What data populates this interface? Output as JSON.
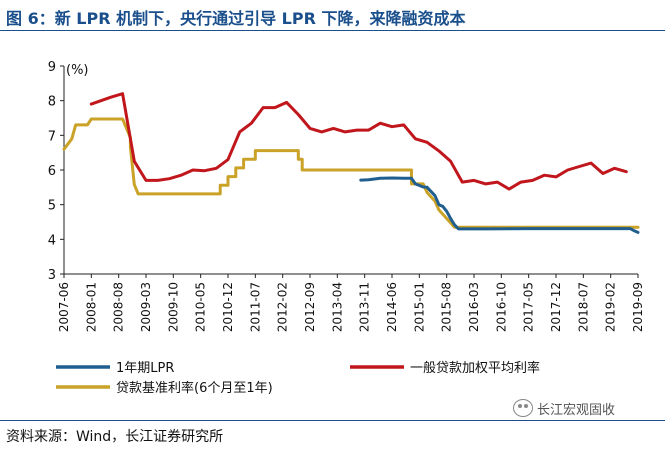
{
  "header": {
    "title": "图 6：新 LPR 机制下，央行通过引导 LPR 下降，来降融资成本"
  },
  "footer": {
    "source": "资料来源：Wind，长江证券研究所",
    "watermark": "长江宏观固收"
  },
  "colors": {
    "lpr": "#1f5e8f",
    "weighted": "#c0161c",
    "benchmark": "#c9a227",
    "accent": "#1a4f8c"
  },
  "icons": {
    "watermark": "wechat-icon"
  },
  "chart_data": {
    "type": "line",
    "unit_label": "(%)",
    "ylim": [
      3,
      9
    ],
    "yticks": [
      "3",
      "4",
      "5",
      "6",
      "7",
      "8",
      "9"
    ],
    "xlim": [
      "2007-06",
      "2019-09"
    ],
    "xticks": [
      "2007-06",
      "2008-01",
      "2008-08",
      "2009-03",
      "2009-10",
      "2010-05",
      "2010-12",
      "2011-07",
      "2012-02",
      "2012-09",
      "2013-04",
      "2013-11",
      "2014-06",
      "2015-01",
      "2015-08",
      "2016-03",
      "2016-10",
      "2017-05",
      "2017-12",
      "2018-07",
      "2019-02",
      "2019-09"
    ],
    "grid": false,
    "legend_position": "bottom",
    "series": [
      {
        "name": "1年期LPR",
        "color": "#1f5e8f",
        "points": [
          [
            "2013-10",
            5.71
          ],
          [
            "2013-12",
            5.72
          ],
          [
            "2014-03",
            5.76
          ],
          [
            "2014-06",
            5.77
          ],
          [
            "2014-09",
            5.76
          ],
          [
            "2014-11",
            5.76
          ],
          [
            "2014-12",
            5.6
          ],
          [
            "2015-02",
            5.51
          ],
          [
            "2015-03",
            5.5
          ],
          [
            "2015-05",
            5.26
          ],
          [
            "2015-06",
            5.0
          ],
          [
            "2015-07",
            4.95
          ],
          [
            "2015-08",
            4.81
          ],
          [
            "2015-09",
            4.6
          ],
          [
            "2015-10",
            4.42
          ],
          [
            "2015-11",
            4.3
          ],
          [
            "2016-06",
            4.3
          ],
          [
            "2017-06",
            4.31
          ],
          [
            "2018-06",
            4.31
          ],
          [
            "2019-02",
            4.31
          ],
          [
            "2019-07",
            4.31
          ],
          [
            "2019-08",
            4.25
          ],
          [
            "2019-09",
            4.2
          ]
        ]
      },
      {
        "name": "一般贷款加权平均利率",
        "color": "#c0161c",
        "points": [
          [
            "2008-01",
            7.9
          ],
          [
            "2008-06",
            8.1
          ],
          [
            "2008-09",
            8.2
          ],
          [
            "2008-12",
            6.25
          ],
          [
            "2009-03",
            5.7
          ],
          [
            "2009-06",
            5.7
          ],
          [
            "2009-09",
            5.75
          ],
          [
            "2009-12",
            5.85
          ],
          [
            "2010-03",
            6.0
          ],
          [
            "2010-06",
            5.98
          ],
          [
            "2010-09",
            6.05
          ],
          [
            "2010-12",
            6.3
          ],
          [
            "2011-03",
            7.1
          ],
          [
            "2011-06",
            7.35
          ],
          [
            "2011-09",
            7.8
          ],
          [
            "2011-12",
            7.8
          ],
          [
            "2012-03",
            7.95
          ],
          [
            "2012-06",
            7.6
          ],
          [
            "2012-09",
            7.2
          ],
          [
            "2012-12",
            7.1
          ],
          [
            "2013-03",
            7.2
          ],
          [
            "2013-06",
            7.1
          ],
          [
            "2013-09",
            7.15
          ],
          [
            "2013-12",
            7.15
          ],
          [
            "2014-03",
            7.35
          ],
          [
            "2014-06",
            7.25
          ],
          [
            "2014-09",
            7.3
          ],
          [
            "2014-12",
            6.9
          ],
          [
            "2015-03",
            6.8
          ],
          [
            "2015-06",
            6.55
          ],
          [
            "2015-09",
            6.25
          ],
          [
            "2015-12",
            5.65
          ],
          [
            "2016-03",
            5.7
          ],
          [
            "2016-06",
            5.6
          ],
          [
            "2016-09",
            5.65
          ],
          [
            "2016-12",
            5.45
          ],
          [
            "2017-03",
            5.65
          ],
          [
            "2017-06",
            5.7
          ],
          [
            "2017-09",
            5.85
          ],
          [
            "2017-12",
            5.8
          ],
          [
            "2018-03",
            6.0
          ],
          [
            "2018-06",
            6.1
          ],
          [
            "2018-09",
            6.2
          ],
          [
            "2018-12",
            5.9
          ],
          [
            "2019-03",
            6.05
          ],
          [
            "2019-06",
            5.95
          ]
        ]
      },
      {
        "name": "贷款基准利率(6个月至1年)",
        "color": "#c9a227",
        "points": [
          [
            "2007-06",
            6.6
          ],
          [
            "2007-08",
            6.9
          ],
          [
            "2007-09",
            7.3
          ],
          [
            "2007-12",
            7.3
          ],
          [
            "2008-01",
            7.47
          ],
          [
            "2008-09",
            7.47
          ],
          [
            "2008-10",
            7.2
          ],
          [
            "2008-11",
            6.93
          ],
          [
            "2008-11",
            6.66
          ],
          [
            "2008-12",
            5.58
          ],
          [
            "2009-01",
            5.31
          ],
          [
            "2010-10",
            5.31
          ],
          [
            "2010-10",
            5.56
          ],
          [
            "2010-12",
            5.56
          ],
          [
            "2010-12",
            5.81
          ],
          [
            "2011-02",
            5.81
          ],
          [
            "2011-02",
            6.06
          ],
          [
            "2011-04",
            6.06
          ],
          [
            "2011-04",
            6.31
          ],
          [
            "2011-07",
            6.31
          ],
          [
            "2011-07",
            6.56
          ],
          [
            "2012-06",
            6.56
          ],
          [
            "2012-06",
            6.31
          ],
          [
            "2012-07",
            6.31
          ],
          [
            "2012-07",
            6.0
          ],
          [
            "2014-11",
            6.0
          ],
          [
            "2014-11",
            5.6
          ],
          [
            "2015-02",
            5.6
          ],
          [
            "2015-03",
            5.35
          ],
          [
            "2015-05",
            5.1
          ],
          [
            "2015-06",
            4.85
          ],
          [
            "2015-08",
            4.6
          ],
          [
            "2015-10",
            4.35
          ],
          [
            "2019-09",
            4.35
          ]
        ]
      }
    ]
  }
}
